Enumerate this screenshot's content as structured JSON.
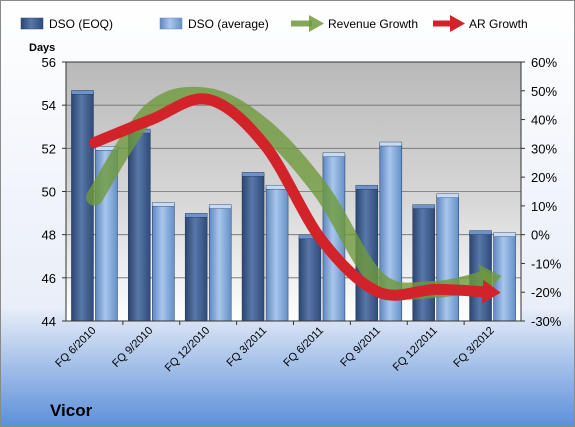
{
  "chart_data": {
    "type": "bar",
    "company": "Vicor",
    "categories": [
      "FQ 6/2010",
      "FQ 9/2010",
      "FQ 12/2010",
      "FQ 3/2011",
      "FQ 6/2011",
      "FQ 9/2011",
      "FQ 12/2011",
      "FQ 3/2012"
    ],
    "series": [
      {
        "name": "DSO (EOQ)",
        "axis": "left",
        "kind": "bar",
        "color": "#4a6898",
        "values": [
          54.6,
          52.8,
          48.9,
          50.8,
          47.9,
          50.2,
          49.3,
          48.1
        ]
      },
      {
        "name": "DSO (average)",
        "axis": "left",
        "kind": "bar",
        "color": "#7fa4d6",
        "values": [
          52.0,
          49.4,
          49.3,
          50.2,
          51.7,
          52.2,
          49.8,
          48.0
        ]
      },
      {
        "name": "Revenue Growth",
        "axis": "right",
        "kind": "line",
        "color": "#6f9a3c",
        "values": [
          13,
          43,
          48,
          37,
          15,
          -16,
          -19,
          -15
        ]
      },
      {
        "name": "AR Growth",
        "axis": "right",
        "kind": "line",
        "color": "#d2232a",
        "values": [
          32,
          40,
          47,
          31,
          -2,
          -20,
          -19,
          -20
        ]
      }
    ],
    "ylabel": "Days",
    "ylim": [
      44,
      56
    ],
    "y_ticks": [
      "44",
      "46",
      "48",
      "50",
      "52",
      "54",
      "56"
    ],
    "y2lim": [
      -30,
      60
    ],
    "y2_ticks": [
      "-30%",
      "-20%",
      "-10%",
      "0%",
      "10%",
      "20%",
      "30%",
      "40%",
      "50%",
      "60%"
    ],
    "grid": true,
    "legend_position": "top"
  }
}
